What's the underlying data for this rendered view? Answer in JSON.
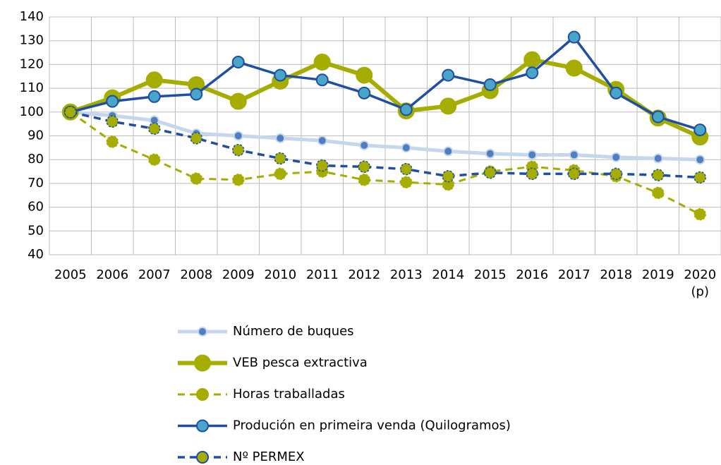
{
  "chart_data": {
    "type": "line",
    "categories": [
      "2005",
      "2006",
      "2007",
      "2008",
      "2009",
      "2010",
      "2011",
      "2012",
      "2013",
      "2014",
      "2015",
      "2016",
      "2017",
      "2018",
      "2019",
      "2020 (p)"
    ],
    "ylim": [
      40,
      140
    ],
    "yticks": [
      40,
      50,
      60,
      70,
      80,
      90,
      100,
      110,
      120,
      130,
      140
    ],
    "grid": true,
    "legend": "bottom",
    "series": [
      {
        "name": "Número de buques",
        "color": "#c6d6ec",
        "marker_color": "#4f7fc0",
        "dash": false,
        "line_width": 5,
        "marker_size": 6,
        "values": [
          100,
          98.5,
          96.5,
          91,
          90,
          89,
          88,
          86,
          85,
          83.5,
          82.5,
          82,
          82,
          81,
          80.5,
          80
        ]
      },
      {
        "name": "VEB pesca extractiva",
        "color": "#a5ad00",
        "marker_color": "#a5ad00",
        "dash": false,
        "line_width": 6,
        "marker_size": 11,
        "values": [
          100,
          106,
          113.5,
          111.5,
          104.5,
          113,
          121,
          115.5,
          100.5,
          102.5,
          109,
          122,
          118.5,
          109.5,
          97.5,
          89.5
        ]
      },
      {
        "name": "Horas traballadas",
        "color": "#a5ad00",
        "marker_color": "#a5ad00",
        "dash": true,
        "line_width": 3,
        "marker_size": 8,
        "values": [
          100,
          87.5,
          80,
          72,
          71.5,
          74,
          75,
          71.5,
          70.5,
          69.5,
          75,
          77,
          75.5,
          73,
          66,
          57
        ]
      },
      {
        "name": "Produción en primeira venda (Quilogramos)",
        "color": "#1e4fa3",
        "marker_color": "#4aa6c8",
        "dash": false,
        "line_width": 3.5,
        "marker_size": 8,
        "values": [
          100,
          104.5,
          106.5,
          107.5,
          121,
          115.5,
          113.5,
          108,
          101,
          115.5,
          111.5,
          116.5,
          131.5,
          108,
          98,
          92.5
        ]
      },
      {
        "name": "Nº PERMEX",
        "color": "#1e4fa3",
        "marker_color": "#a5ad00",
        "dash": true,
        "line_width": 3.5,
        "marker_size": 8,
        "values": [
          100,
          96,
          93,
          89,
          84,
          80.5,
          77.5,
          77,
          76,
          73,
          74.5,
          74,
          74,
          74,
          73.5,
          72.5
        ]
      }
    ]
  }
}
